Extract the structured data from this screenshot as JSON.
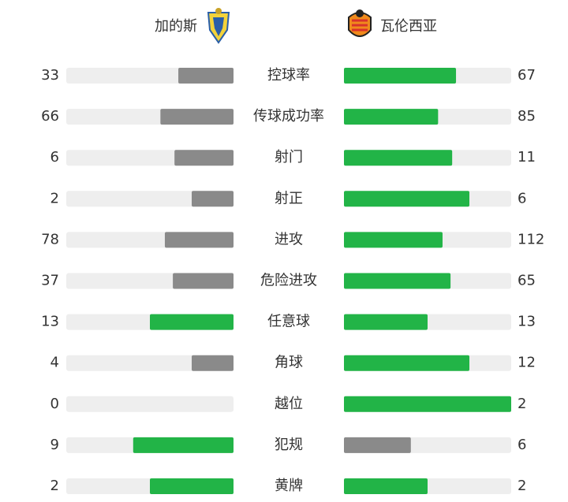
{
  "teams": {
    "home": {
      "name": "加的斯"
    },
    "away": {
      "name": "瓦伦西亚"
    }
  },
  "colors": {
    "leader": "#22b447",
    "trailer": "#8a8a8a",
    "track": "#eeeeee"
  },
  "stats": [
    {
      "label": "控球率",
      "home": 33,
      "away": 67
    },
    {
      "label": "传球成功率",
      "home": 66,
      "away": 85
    },
    {
      "label": "射门",
      "home": 6,
      "away": 11
    },
    {
      "label": "射正",
      "home": 2,
      "away": 6
    },
    {
      "label": "进攻",
      "home": 78,
      "away": 112
    },
    {
      "label": "危险进攻",
      "home": 37,
      "away": 65
    },
    {
      "label": "任意球",
      "home": 13,
      "away": 13
    },
    {
      "label": "角球",
      "home": 4,
      "away": 12
    },
    {
      "label": "越位",
      "home": 0,
      "away": 2
    },
    {
      "label": "犯规",
      "home": 9,
      "away": 6
    },
    {
      "label": "黄牌",
      "home": 2,
      "away": 2
    }
  ]
}
